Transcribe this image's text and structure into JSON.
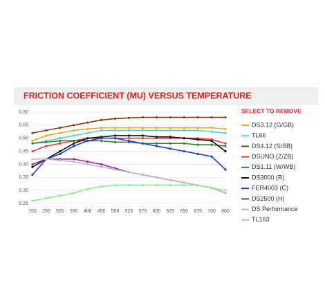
{
  "chart_data": {
    "type": "line",
    "title": "FRICTION COEFFICIENT (MU) VERSUS TEMPERATURE",
    "legend_title": "SELECT TO REMOVE",
    "categories": [
      "150",
      "250",
      "300",
      "350",
      "400",
      "450",
      "500",
      "525",
      "575",
      "600",
      "625",
      "650",
      "675",
      "700",
      "800"
    ],
    "ylim": [
      0.25,
      0.6
    ],
    "yticks": [
      {
        "value": 0.25,
        "label": "0.25"
      },
      {
        "value": 0.3,
        "label": "0.30"
      },
      {
        "value": 0.35,
        "label": "0.35"
      },
      {
        "value": 0.4,
        "label": "0.40"
      },
      {
        "value": 0.45,
        "label": "0.45"
      },
      {
        "value": 0.5,
        "label": "0.50"
      },
      {
        "value": 0.55,
        "label": "0.55"
      },
      {
        "value": 0.6,
        "label": "0.60"
      }
    ],
    "grid": true,
    "legend": "right",
    "series": [
      {
        "name": "DS3.12 (G/GB)",
        "color": "#f5a623",
        "values": [
          0.49,
          0.51,
          0.52,
          0.53,
          0.535,
          0.54,
          0.54,
          0.54,
          0.54,
          0.54,
          0.54,
          0.54,
          0.54,
          0.54,
          0.535
        ]
      },
      {
        "name": "TL66",
        "color": "#4dd0e1",
        "values": [
          0.48,
          0.49,
          0.5,
          0.51,
          0.52,
          0.53,
          0.53,
          0.53,
          0.53,
          0.53,
          0.53,
          0.53,
          0.53,
          0.525,
          0.52
        ]
      },
      {
        "name": "DS4.12 (S/SB)",
        "color": "#7a3b10",
        "values": [
          0.52,
          0.53,
          0.54,
          0.55,
          0.56,
          0.57,
          0.575,
          0.578,
          0.58,
          0.58,
          0.58,
          0.58,
          0.58,
          0.58,
          0.58
        ]
      },
      {
        "name": "DSUNO (Z/ZB)",
        "color": "#e53935",
        "values": [
          0.45,
          0.47,
          0.48,
          0.49,
          0.5,
          0.5,
          0.5,
          0.5,
          0.5,
          0.5,
          0.5,
          0.5,
          0.5,
          0.495,
          0.48
        ]
      },
      {
        "name": "DS1.11 (W/WB)",
        "color": "#2e7d32",
        "values": [
          0.48,
          0.485,
          0.49,
          0.49,
          0.49,
          0.49,
          0.485,
          0.485,
          0.48,
          0.48,
          0.48,
          0.48,
          0.475,
          0.475,
          0.47
        ]
      },
      {
        "name": "DS3000 (R)",
        "color": "#111111",
        "values": [
          0.39,
          0.42,
          0.45,
          0.48,
          0.5,
          0.505,
          0.51,
          0.51,
          0.51,
          0.505,
          0.505,
          0.5,
          0.495,
          0.49,
          0.45
        ]
      },
      {
        "name": "FER4003 (C)",
        "color": "#1a3fd1",
        "values": [
          0.36,
          0.42,
          0.44,
          0.47,
          0.49,
          0.5,
          0.5,
          0.49,
          0.48,
          0.47,
          0.46,
          0.45,
          0.44,
          0.43,
          0.38
        ]
      },
      {
        "name": "DS2500 (H)",
        "color": "#8e24aa",
        "values": [
          0.4,
          0.42,
          0.42,
          0.42,
          0.41,
          0.4,
          0.385,
          0.37,
          0.36,
          0.35,
          0.34,
          0.33,
          0.32,
          0.31,
          0.29
        ]
      },
      {
        "name": "DS Performance",
        "color": "#bdbdbd",
        "values": [
          0.42,
          0.42,
          0.415,
          0.41,
          0.4,
          0.39,
          0.38,
          0.37,
          0.36,
          0.35,
          0.34,
          0.33,
          0.32,
          0.31,
          0.29
        ]
      },
      {
        "name": "TL163",
        "color": "#8ee88e",
        "values": [
          0.26,
          0.27,
          0.28,
          0.29,
          0.305,
          0.315,
          0.32,
          0.32,
          0.32,
          0.32,
          0.32,
          0.32,
          0.32,
          0.31,
          0.3
        ]
      }
    ]
  }
}
